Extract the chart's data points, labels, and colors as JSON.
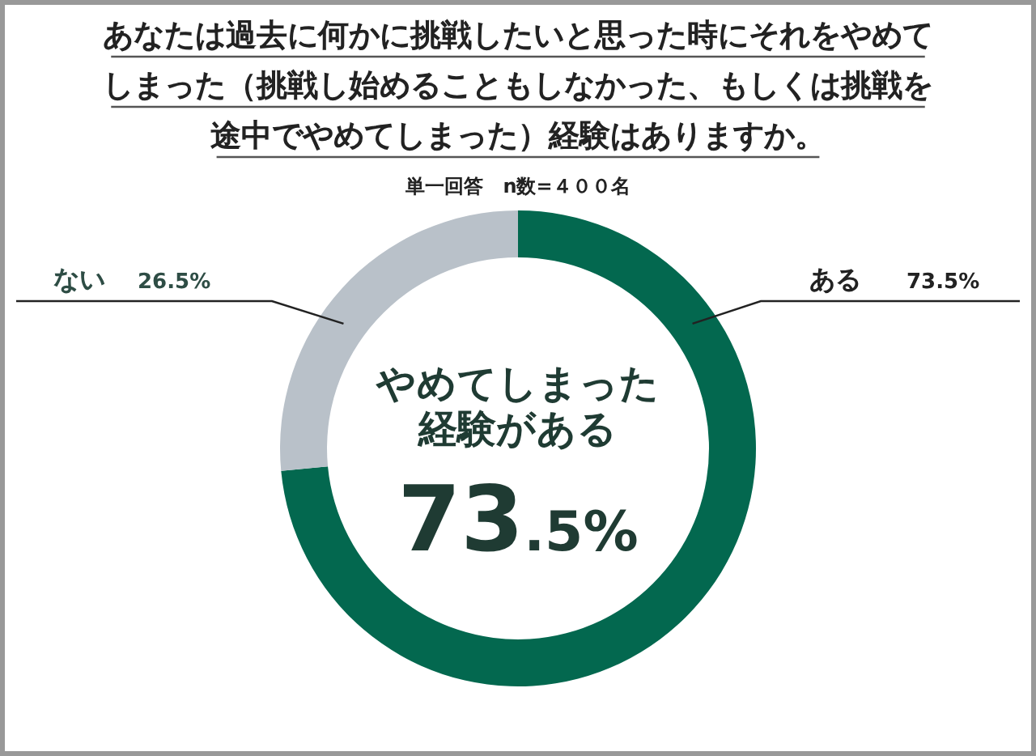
{
  "chart_data": {
    "type": "donut",
    "title": "あなたは過去に何かに挑戦したいと思った時にそれをやめてしまった（挑戦し始めることもしなかった、もしくは挑戦を途中でやめてしまった）経験はありますか。",
    "subtitle": "単一回答　n数=４００名",
    "categories": [
      "ある",
      "ない"
    ],
    "values": [
      73.5,
      26.5
    ],
    "colors": [
      "#03684f",
      "#b9c1c9"
    ],
    "value_labels": [
      "73.5%",
      "26.5%"
    ],
    "annotations": [
      "やめてしまった",
      "経験がある",
      "73.5%"
    ]
  }
}
